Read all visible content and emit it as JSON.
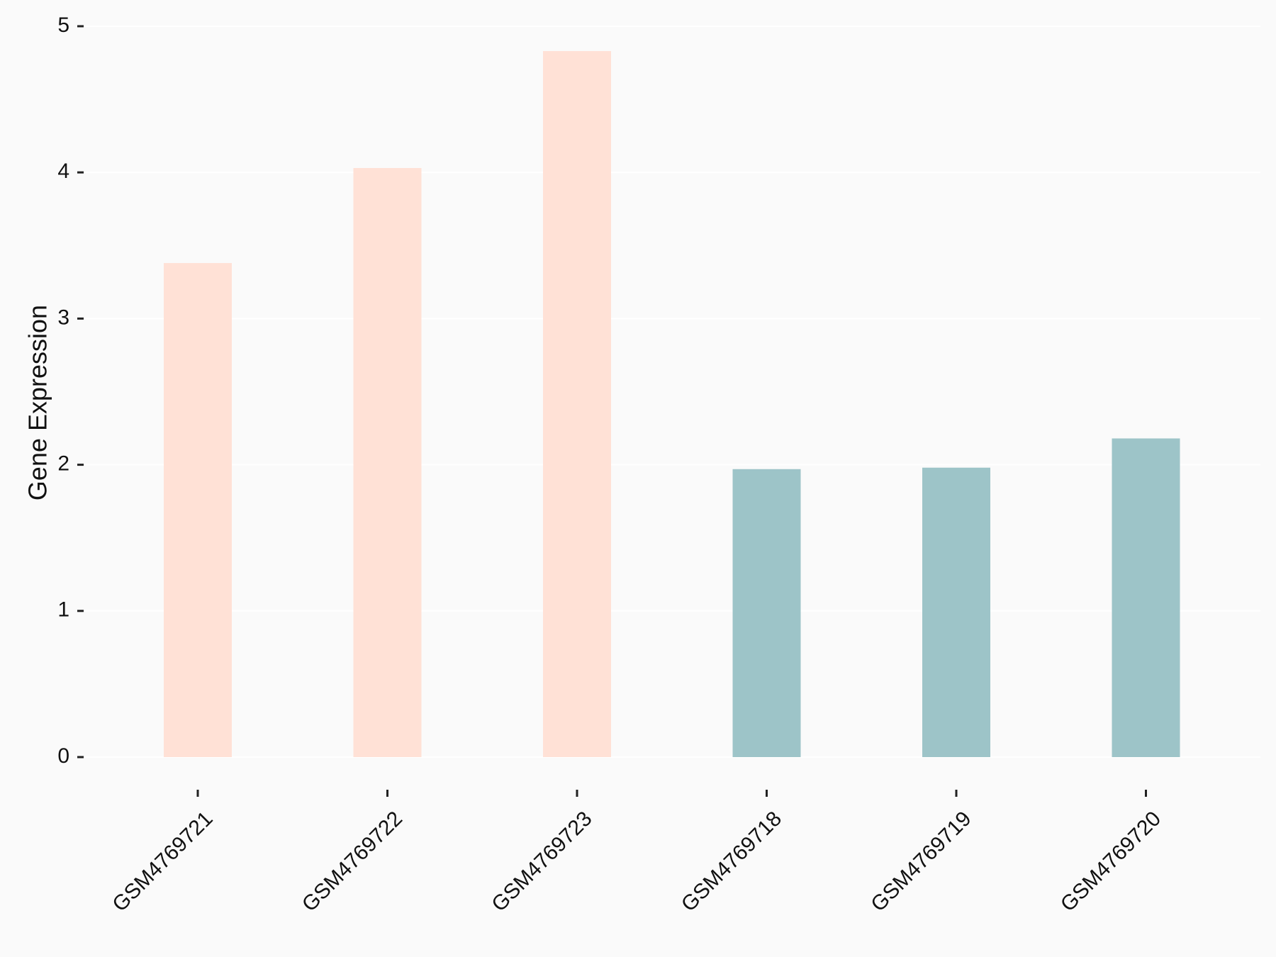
{
  "chart_data": {
    "type": "bar",
    "y_label": "Gene Expression",
    "categories": [
      "GSM4769721",
      "GSM4769722",
      "GSM4769723",
      "GSM4769718",
      "GSM4769719",
      "GSM4769720"
    ],
    "values": [
      3.38,
      4.03,
      4.83,
      1.97,
      1.98,
      2.18
    ],
    "colors": [
      "#ffe1d6",
      "#ffe1d6",
      "#ffe1d6",
      "#9dc4c8",
      "#9dc4c8",
      "#9dc4c8"
    ],
    "ylim": [
      0,
      5
    ],
    "yticks": [
      0,
      1,
      2,
      3,
      4,
      5
    ],
    "grid": true
  }
}
